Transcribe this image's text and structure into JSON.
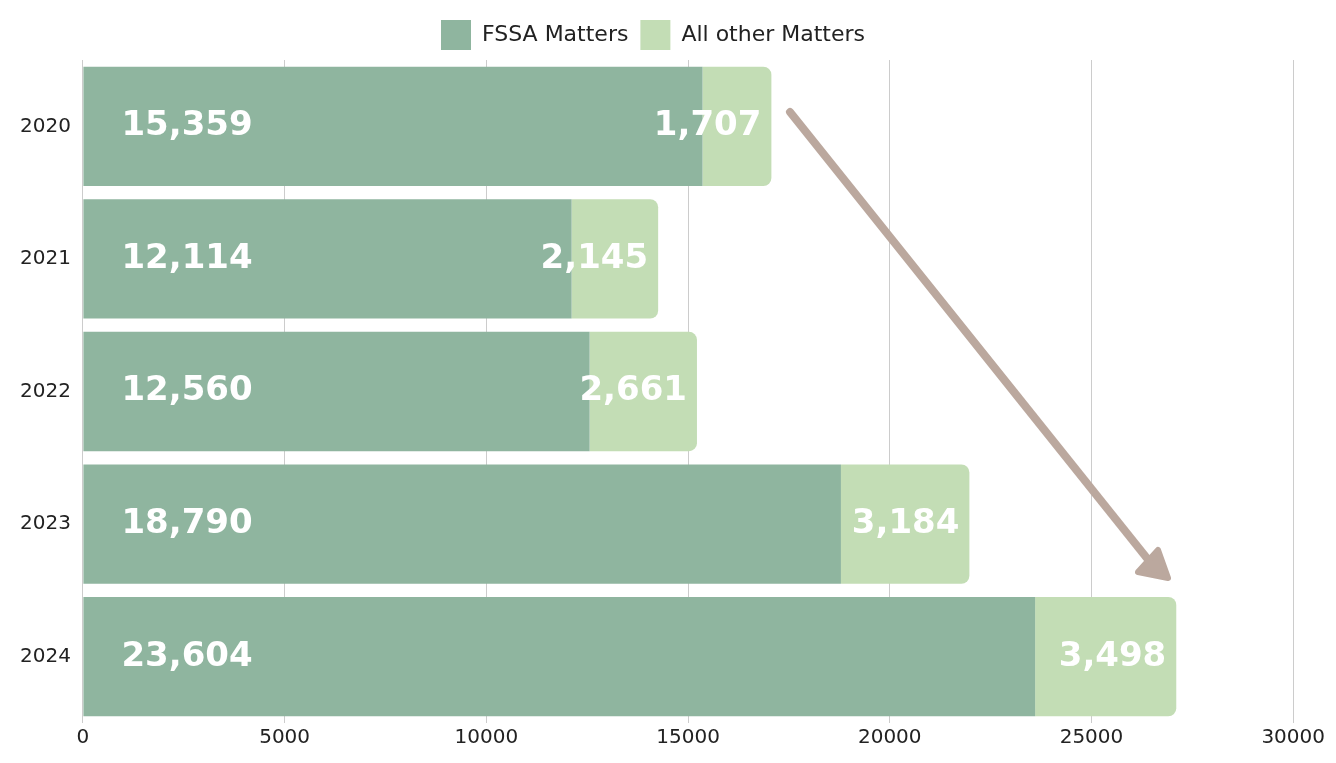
{
  "chart_data": {
    "type": "bar",
    "orientation": "horizontal",
    "stacked": true,
    "categories": [
      "2020",
      "2021",
      "2022",
      "2023",
      "2024"
    ],
    "series": [
      {
        "name": "FSSA Matters",
        "color": "#8fb59f",
        "values": [
          15359,
          12114,
          12560,
          18790,
          23604
        ],
        "value_labels": [
          "15,359",
          "12,114",
          "12,560",
          "18,790",
          "23,604"
        ]
      },
      {
        "name": "All other Matters",
        "color": "#c3ddb5",
        "values": [
          1707,
          2145,
          2661,
          3184,
          3498
        ],
        "value_labels": [
          "1,707",
          "2,145",
          "2,661",
          "3,184",
          "3,498"
        ]
      }
    ],
    "xlim": [
      0,
      30000
    ],
    "xticks": [
      0,
      5000,
      10000,
      15000,
      20000,
      25000,
      30000
    ],
    "grid": "x",
    "legend": "top"
  }
}
